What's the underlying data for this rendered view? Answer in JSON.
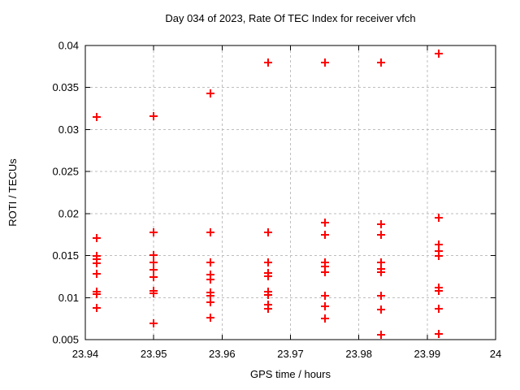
{
  "chart_data": {
    "type": "scatter",
    "title": "Day 034 of 2023, Rate Of TEC Index for receiver vfch",
    "xlabel": "GPS time / hours",
    "ylabel": "ROTI / TECUs",
    "xlim": [
      23.94,
      24
    ],
    "ylim": [
      0.005,
      0.04
    ],
    "xticks": {
      "values": [
        23.94,
        23.95,
        23.96,
        23.97,
        23.98,
        23.99,
        24
      ],
      "labels": [
        "23.94",
        "23.95",
        "23.96",
        "23.97",
        "23.98",
        "23.99",
        "24"
      ]
    },
    "yticks": {
      "values": [
        0.005,
        0.01,
        0.015,
        0.02,
        0.025,
        0.03,
        0.035,
        0.04
      ],
      "labels": [
        "0.005",
        "0.01",
        "0.015",
        "0.02",
        "0.025",
        "0.03",
        "0.035",
        "0.04"
      ]
    },
    "grid": true,
    "legend": "none",
    "marker": "plus",
    "marker_size": 5,
    "colors": {
      "marker": "#ff0000",
      "grid": "#bebebe",
      "axis": "#000000",
      "text": "#000000",
      "background": "#ffffff"
    },
    "points": [
      [
        23.9417,
        0.0315
      ],
      [
        23.9417,
        0.0171
      ],
      [
        23.9417,
        0.015
      ],
      [
        23.9417,
        0.0146
      ],
      [
        23.9417,
        0.0141
      ],
      [
        23.9417,
        0.0128
      ],
      [
        23.9417,
        0.0107
      ],
      [
        23.9417,
        0.0104
      ],
      [
        23.9417,
        0.0088
      ],
      [
        23.95,
        0.0316
      ],
      [
        23.95,
        0.0178
      ],
      [
        23.95,
        0.0151
      ],
      [
        23.95,
        0.0142
      ],
      [
        23.95,
        0.0133
      ],
      [
        23.95,
        0.0124
      ],
      [
        23.95,
        0.0108
      ],
      [
        23.95,
        0.0105
      ],
      [
        23.95,
        0.0069
      ],
      [
        23.9583,
        0.0343
      ],
      [
        23.9583,
        0.0178
      ],
      [
        23.9583,
        0.0142
      ],
      [
        23.9583,
        0.0127
      ],
      [
        23.9583,
        0.0122
      ],
      [
        23.9583,
        0.0106
      ],
      [
        23.9583,
        0.0102
      ],
      [
        23.9583,
        0.0094
      ],
      [
        23.9583,
        0.0076
      ],
      [
        23.9667,
        0.038
      ],
      [
        23.9667,
        0.0178
      ],
      [
        23.9667,
        0.0142
      ],
      [
        23.9667,
        0.0129
      ],
      [
        23.9667,
        0.0125
      ],
      [
        23.9667,
        0.0107
      ],
      [
        23.9667,
        0.0103
      ],
      [
        23.9667,
        0.0092
      ],
      [
        23.9667,
        0.0087
      ],
      [
        23.975,
        0.038
      ],
      [
        23.975,
        0.0189
      ],
      [
        23.975,
        0.0175
      ],
      [
        23.975,
        0.0142
      ],
      [
        23.975,
        0.0137
      ],
      [
        23.975,
        0.013
      ],
      [
        23.975,
        0.0102
      ],
      [
        23.975,
        0.009
      ],
      [
        23.975,
        0.0075
      ],
      [
        23.9833,
        0.038
      ],
      [
        23.9833,
        0.0187
      ],
      [
        23.9833,
        0.0175
      ],
      [
        23.9833,
        0.0142
      ],
      [
        23.9833,
        0.0134
      ],
      [
        23.9833,
        0.013
      ],
      [
        23.9833,
        0.0102
      ],
      [
        23.9833,
        0.0086
      ],
      [
        23.9833,
        0.0056
      ],
      [
        23.9917,
        0.039
      ],
      [
        23.9917,
        0.0195
      ],
      [
        23.9917,
        0.0163
      ],
      [
        23.9917,
        0.0155
      ],
      [
        23.9917,
        0.015
      ],
      [
        23.9917,
        0.0112
      ],
      [
        23.9917,
        0.0108
      ],
      [
        23.9917,
        0.0087
      ],
      [
        23.9917,
        0.0057
      ]
    ]
  }
}
